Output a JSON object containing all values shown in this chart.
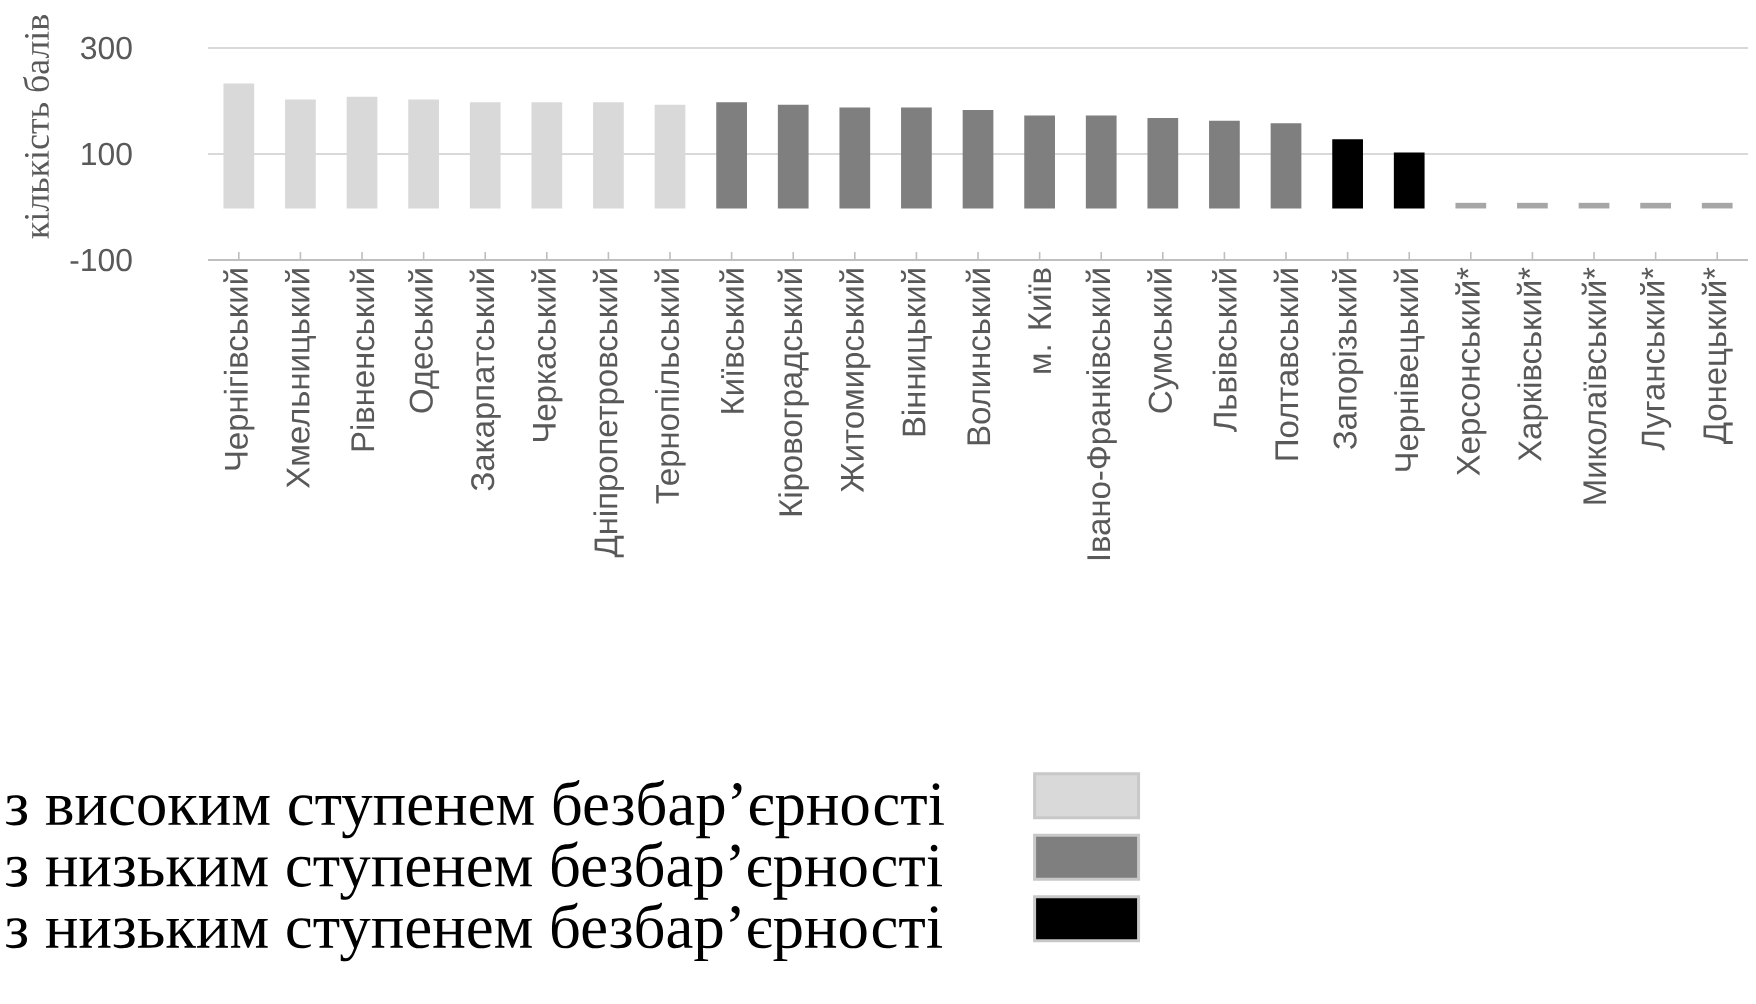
{
  "chart_data": {
    "type": "bar",
    "ylabel": "кількість балів",
    "categories": [
      "Чернігівський",
      "Хмельницький",
      "Рівненський",
      "Одеський",
      "Закарпатський",
      "Черкаський",
      "Дніпропетровський",
      "Тернопільський",
      "Київський",
      "Кіровоградський",
      "Житомирський",
      "Вінницький",
      "Волинський",
      "м. Київ",
      "Івано-Франківський",
      "Сумський",
      "Львівський",
      "Полтавський",
      "Запорізький",
      "Чернівецький",
      "Херсонський*",
      "Харківський*",
      "Миколаївський*",
      "Луганський*",
      "Донецький*"
    ],
    "series": [
      {
        "name": "з високим ступенем безбар’єрності",
        "color": "#d9d9d9",
        "values": [
          230,
          200,
          205,
          200,
          195,
          195,
          195,
          190,
          null,
          null,
          null,
          null,
          null,
          null,
          null,
          null,
          null,
          null,
          null,
          null,
          null,
          null,
          null,
          null,
          null
        ]
      },
      {
        "name": "з низьким ступенем безбар’єрності",
        "color": "#7f7f7f",
        "values": [
          null,
          null,
          null,
          null,
          null,
          null,
          null,
          null,
          195,
          190,
          185,
          185,
          180,
          170,
          170,
          165,
          160,
          155,
          null,
          null,
          null,
          null,
          null,
          null,
          null
        ]
      },
      {
        "name": "з низьким ступенем безбар’єрності",
        "color": "#000000",
        "values": [
          null,
          null,
          null,
          null,
          null,
          null,
          null,
          null,
          null,
          null,
          null,
          null,
          null,
          null,
          null,
          null,
          null,
          null,
          125,
          100,
          null,
          null,
          null,
          null,
          null
        ]
      },
      {
        "color": "#a6a6a6",
        "values": [
          null,
          null,
          null,
          null,
          null,
          null,
          null,
          null,
          null,
          null,
          null,
          null,
          null,
          null,
          null,
          null,
          null,
          null,
          null,
          null,
          5,
          5,
          5,
          5,
          5
        ]
      }
    ],
    "ylim": [
      -100,
      300
    ],
    "yticks": [
      -100,
      100,
      300
    ],
    "grid": "y",
    "legend": "bottom"
  }
}
